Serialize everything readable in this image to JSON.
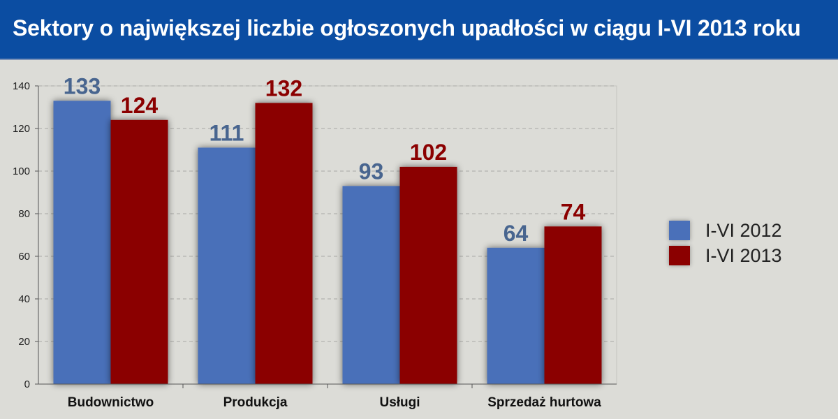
{
  "header": {
    "title": "Sektory o największej liczbie ogłoszonych upadłości w ciągu I-VI 2013 roku"
  },
  "colors": {
    "title_background": "#0b4da2",
    "series_2012": "#4a70b9",
    "series_2013": "#8b0000",
    "label_2012": "#48658f",
    "label_2013": "#8b0000"
  },
  "chart_data": {
    "type": "bar",
    "title": "Sektory o największej liczbie ogłoszonych upadłości w ciągu I-VI 2013 roku",
    "xlabel": "",
    "ylabel": "",
    "categories": [
      "Budownictwo",
      "Produkcja",
      "Usługi",
      "Sprzedaż hurtowa"
    ],
    "series": [
      {
        "name": "I-VI 2012",
        "values": [
          133,
          111,
          93,
          64
        ]
      },
      {
        "name": "I-VI 2013",
        "values": [
          124,
          132,
          102,
          74
        ]
      }
    ],
    "ylim": [
      0,
      140
    ],
    "yticks": [
      0,
      20,
      40,
      60,
      80,
      100,
      120,
      140
    ],
    "grid": true,
    "legend_position": "right",
    "data_labels": true
  }
}
